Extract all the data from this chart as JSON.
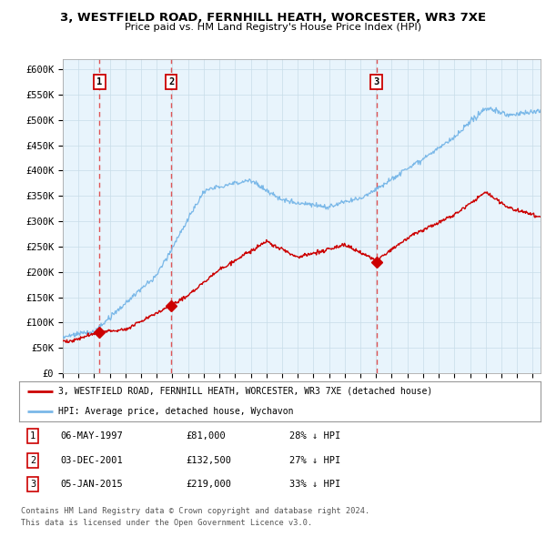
{
  "title": "3, WESTFIELD ROAD, FERNHILL HEATH, WORCESTER, WR3 7XE",
  "subtitle": "Price paid vs. HM Land Registry's House Price Index (HPI)",
  "ylim": [
    0,
    620000
  ],
  "yticks": [
    0,
    50000,
    100000,
    150000,
    200000,
    250000,
    300000,
    350000,
    400000,
    450000,
    500000,
    550000,
    600000
  ],
  "ytick_labels": [
    "£0",
    "£50K",
    "£100K",
    "£150K",
    "£200K",
    "£250K",
    "£300K",
    "£350K",
    "£400K",
    "£450K",
    "£500K",
    "£550K",
    "£600K"
  ],
  "hpi_color": "#7ab8e8",
  "price_color": "#cc0000",
  "dashed_color": "#dd4444",
  "background_color": "#e8f4fc",
  "sale_points": [
    {
      "date_num": 1997.35,
      "price": 81000,
      "label": "1"
    },
    {
      "date_num": 2001.92,
      "price": 132500,
      "label": "2"
    },
    {
      "date_num": 2015.02,
      "price": 219000,
      "label": "3"
    }
  ],
  "legend_entries": [
    "3, WESTFIELD ROAD, FERNHILL HEATH, WORCESTER, WR3 7XE (detached house)",
    "HPI: Average price, detached house, Wychavon"
  ],
  "table_data": [
    {
      "num": "1",
      "date": "06-MAY-1997",
      "price": "£81,000",
      "hpi": "28% ↓ HPI"
    },
    {
      "num": "2",
      "date": "03-DEC-2001",
      "price": "£132,500",
      "hpi": "27% ↓ HPI"
    },
    {
      "num": "3",
      "date": "05-JAN-2015",
      "price": "£219,000",
      "hpi": "33% ↓ HPI"
    }
  ],
  "footnote1": "Contains HM Land Registry data © Crown copyright and database right 2024.",
  "footnote2": "This data is licensed under the Open Government Licence v3.0.",
  "xlim_start": 1995.0,
  "xlim_end": 2025.5
}
